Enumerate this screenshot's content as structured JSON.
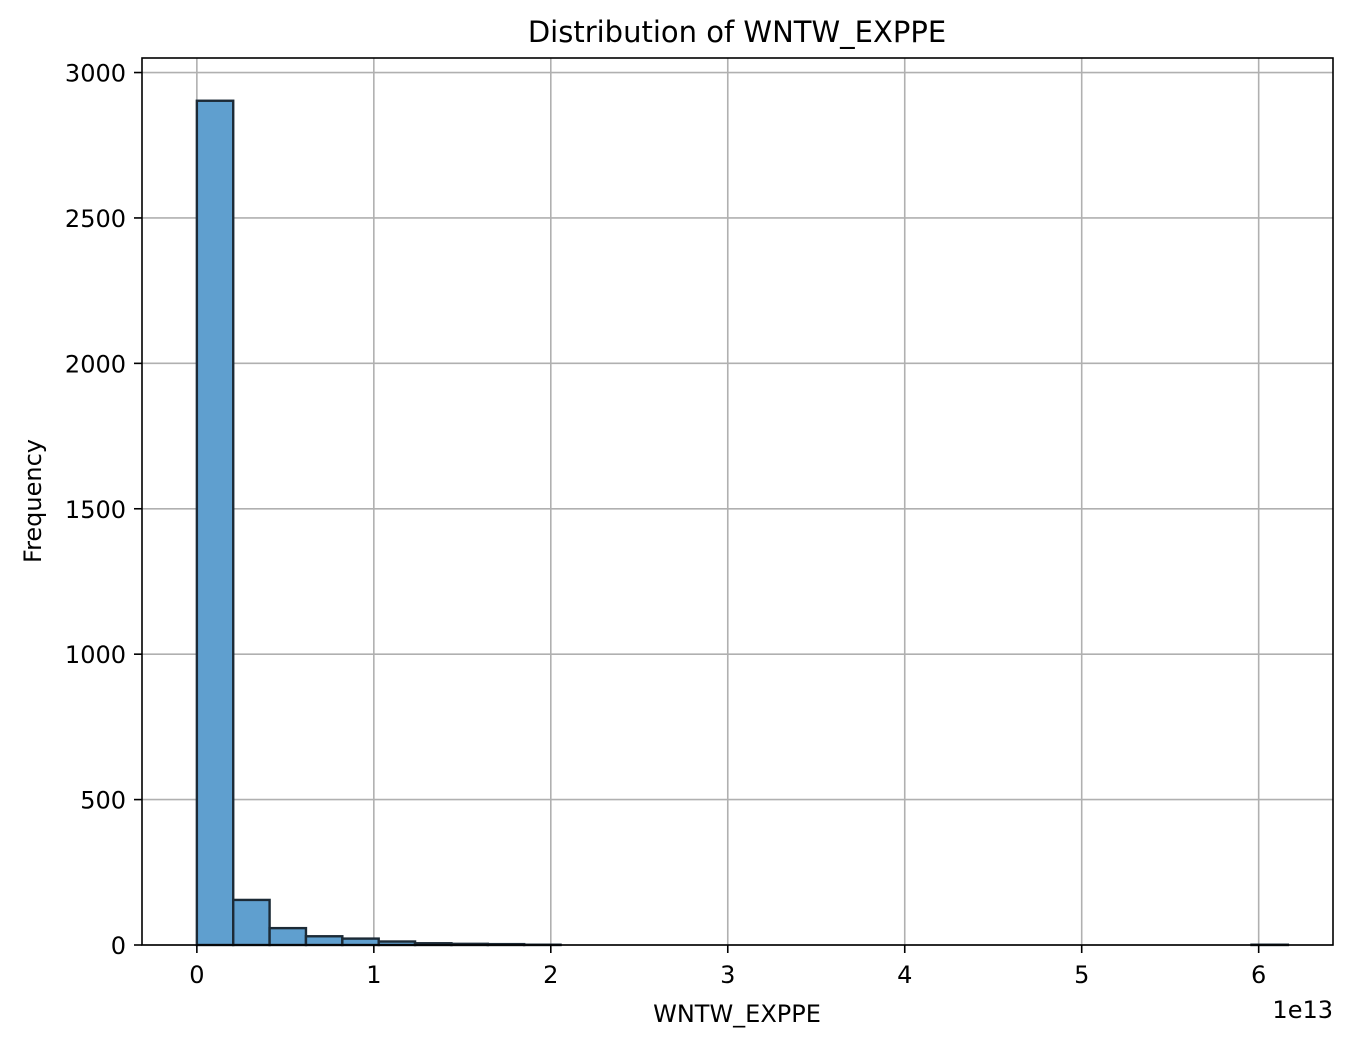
{
  "chart_data": {
    "type": "bar",
    "title": "Distribution of WNTW_EXPPE",
    "xlabel": "WNTW_EXPPE",
    "ylabel": "Frequency",
    "x_offset_label": "1e13",
    "xlim": [
      -0.31,
      6.42
    ],
    "ylim": [
      0,
      3050
    ],
    "xticks": [
      0,
      1,
      2,
      3,
      4,
      5,
      6
    ],
    "yticks": [
      0,
      500,
      1000,
      1500,
      2000,
      2500,
      3000
    ],
    "grid": true,
    "bin_width": 0.2055,
    "bin_start": 0,
    "values": [
      2903,
      155,
      58,
      30,
      22,
      12,
      6,
      4,
      3,
      1,
      0,
      0,
      0,
      0,
      0,
      0,
      0,
      0,
      0,
      0,
      0,
      0,
      0,
      0,
      0,
      0,
      0,
      0,
      0,
      1
    ],
    "bar_color": "#5f9fcf",
    "edge_color": "#1c2a36"
  }
}
